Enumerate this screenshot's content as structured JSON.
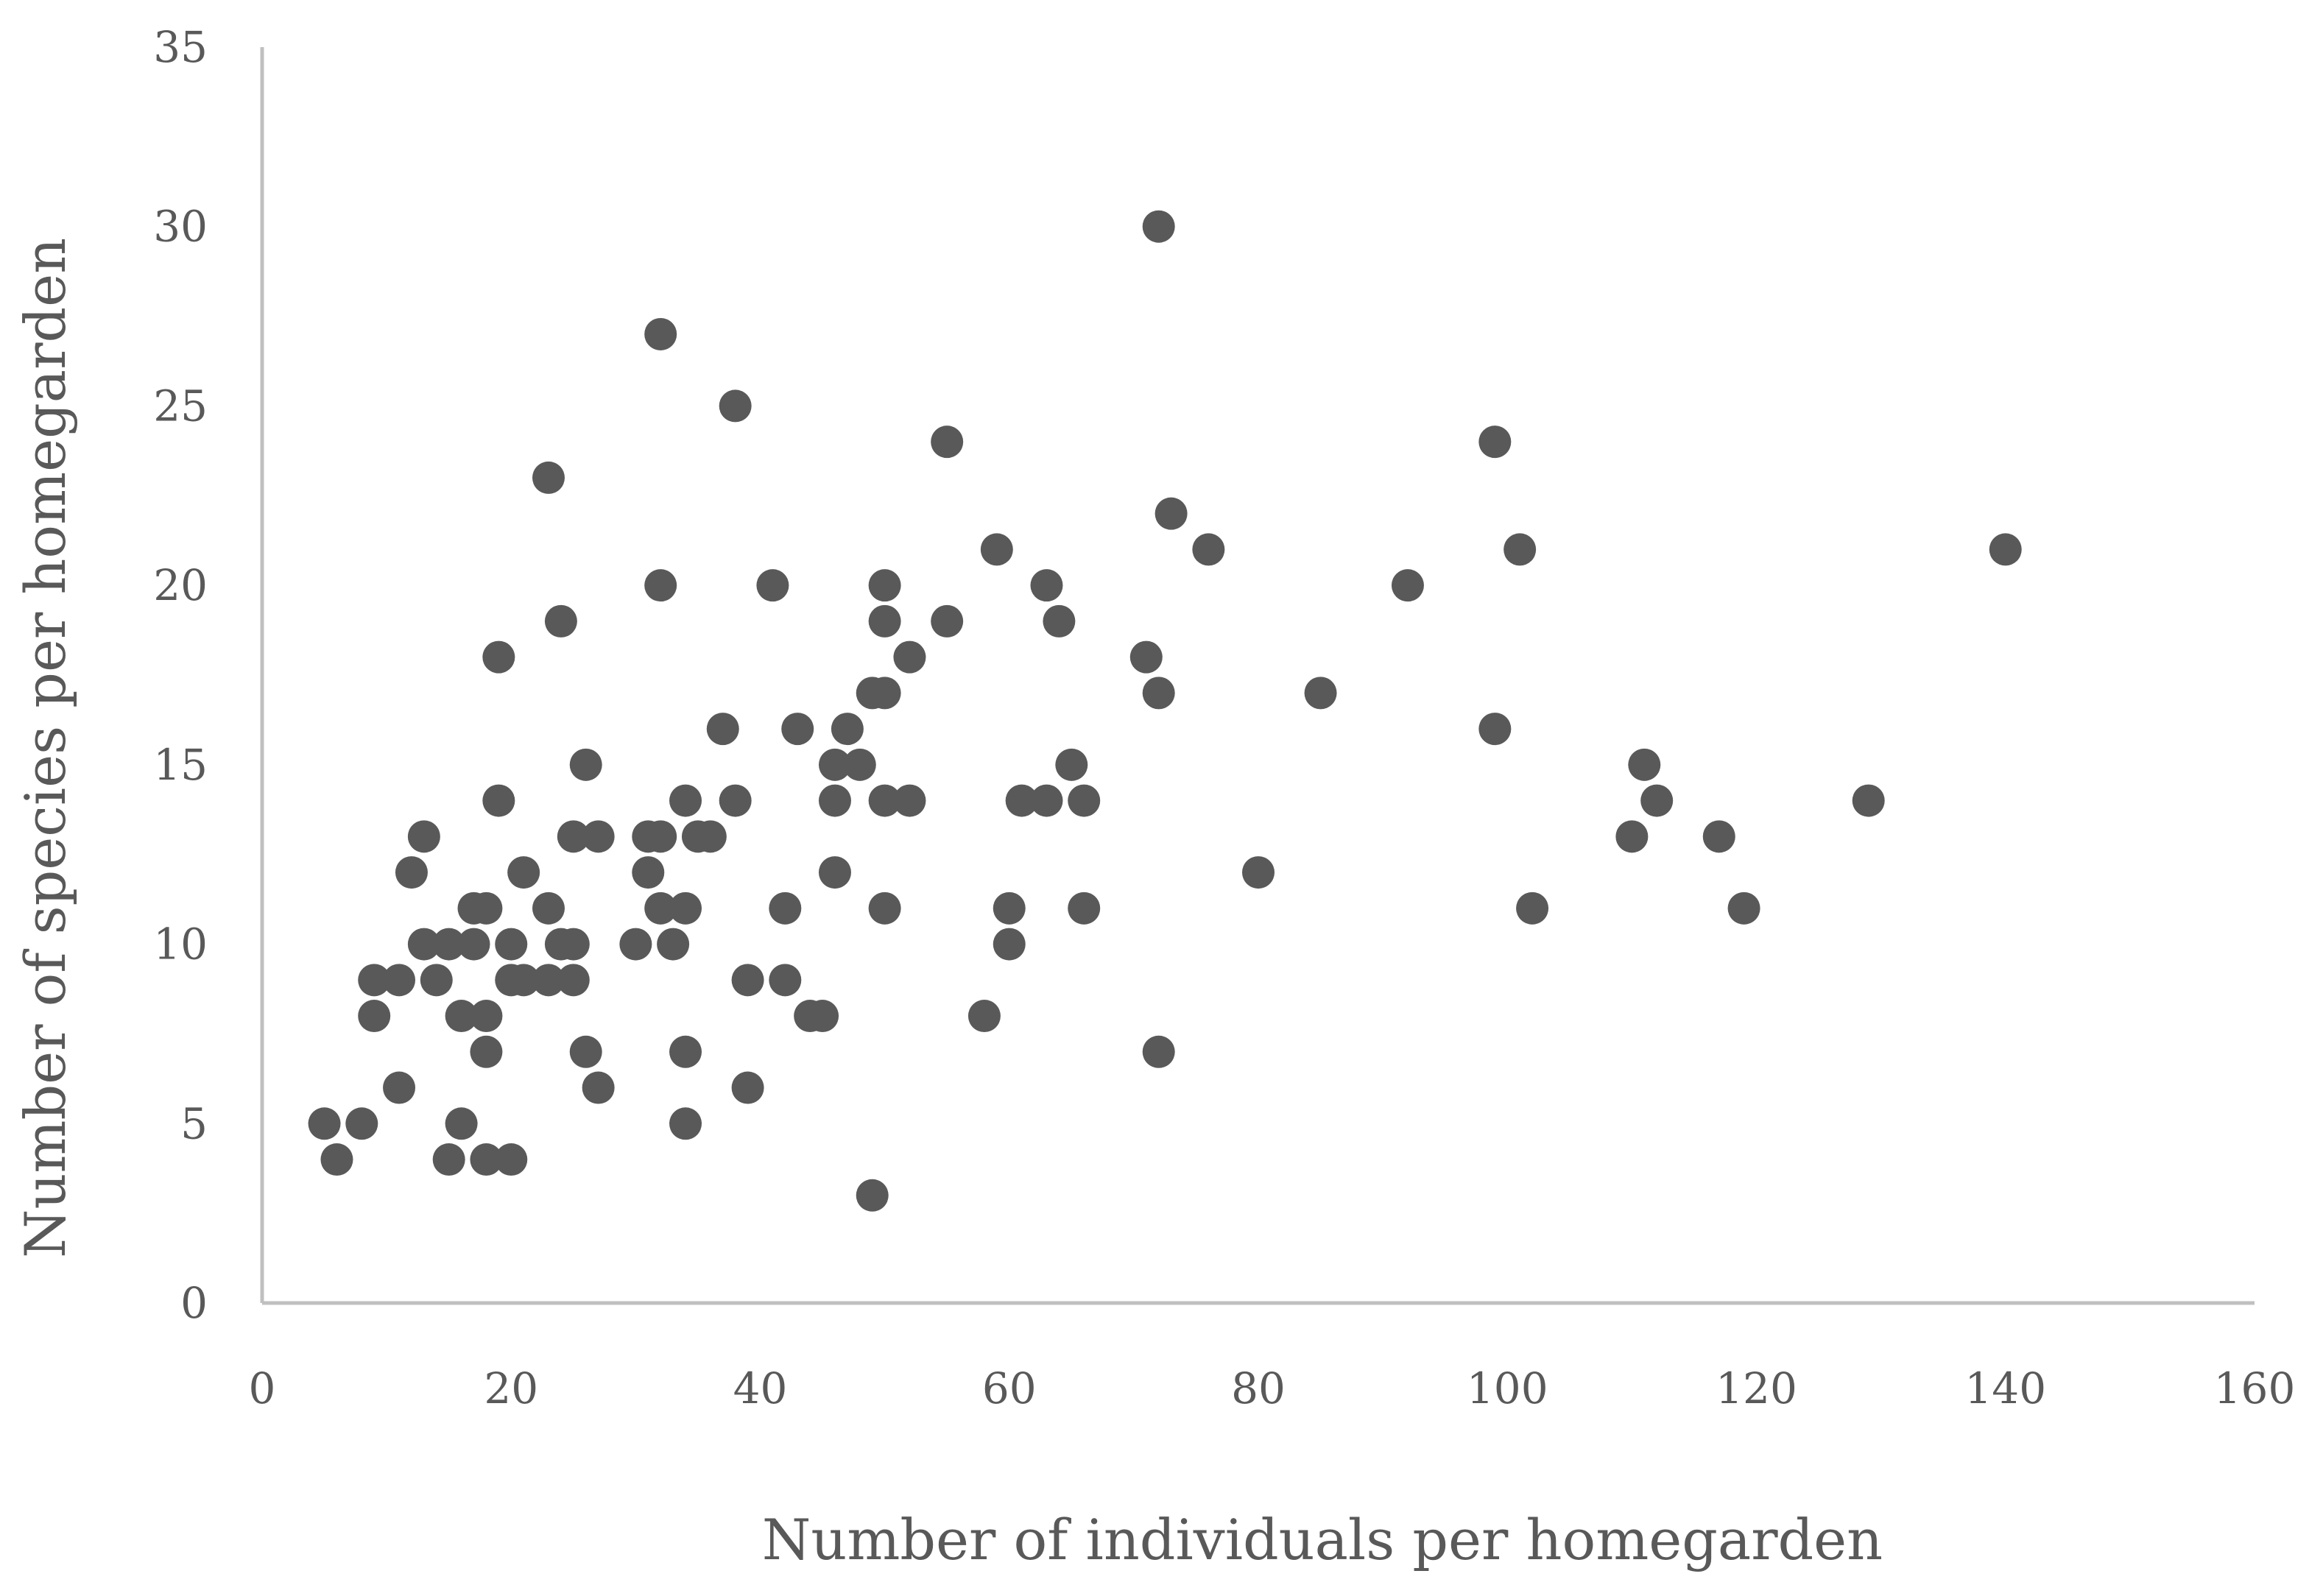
{
  "chart_data": {
    "type": "scatter",
    "title": "",
    "xlabel": "Number of individuals per homegarden",
    "ylabel": "Number of species per homegarden",
    "xlim": [
      0,
      160
    ],
    "ylim": [
      0,
      35
    ],
    "x_ticks": [
      "0",
      "20",
      "40",
      "60",
      "80",
      "100",
      "120",
      "140",
      "160"
    ],
    "y_ticks": [
      "0",
      "5",
      "10",
      "15",
      "20",
      "25",
      "30",
      "35"
    ],
    "grid": false,
    "legend": "none",
    "marker_color": "#595959",
    "axis_color": "#c0c0c0",
    "text_color": "#595959",
    "points": [
      {
        "x": 5,
        "y": 5
      },
      {
        "x": 6,
        "y": 4
      },
      {
        "x": 8,
        "y": 5
      },
      {
        "x": 9,
        "y": 9
      },
      {
        "x": 9,
        "y": 8
      },
      {
        "x": 11,
        "y": 9
      },
      {
        "x": 11,
        "y": 6
      },
      {
        "x": 12,
        "y": 12
      },
      {
        "x": 13,
        "y": 13
      },
      {
        "x": 13,
        "y": 10
      },
      {
        "x": 14,
        "y": 9
      },
      {
        "x": 15,
        "y": 10
      },
      {
        "x": 15,
        "y": 4
      },
      {
        "x": 16,
        "y": 8
      },
      {
        "x": 16,
        "y": 5
      },
      {
        "x": 17,
        "y": 11
      },
      {
        "x": 17,
        "y": 10
      },
      {
        "x": 18,
        "y": 11
      },
      {
        "x": 18,
        "y": 8
      },
      {
        "x": 18,
        "y": 7
      },
      {
        "x": 18,
        "y": 4
      },
      {
        "x": 19,
        "y": 18
      },
      {
        "x": 19,
        "y": 14
      },
      {
        "x": 20,
        "y": 10
      },
      {
        "x": 20,
        "y": 9
      },
      {
        "x": 20,
        "y": 4
      },
      {
        "x": 21,
        "y": 12
      },
      {
        "x": 21,
        "y": 9
      },
      {
        "x": 23,
        "y": 23
      },
      {
        "x": 23,
        "y": 11
      },
      {
        "x": 23,
        "y": 9
      },
      {
        "x": 24,
        "y": 19
      },
      {
        "x": 24,
        "y": 10
      },
      {
        "x": 25,
        "y": 13
      },
      {
        "x": 25,
        "y": 10
      },
      {
        "x": 25,
        "y": 9
      },
      {
        "x": 26,
        "y": 15
      },
      {
        "x": 26,
        "y": 7
      },
      {
        "x": 27,
        "y": 13
      },
      {
        "x": 27,
        "y": 6
      },
      {
        "x": 30,
        "y": 10
      },
      {
        "x": 31,
        "y": 13
      },
      {
        "x": 31,
        "y": 12
      },
      {
        "x": 32,
        "y": 27
      },
      {
        "x": 32,
        "y": 20
      },
      {
        "x": 32,
        "y": 13
      },
      {
        "x": 32,
        "y": 11
      },
      {
        "x": 33,
        "y": 10
      },
      {
        "x": 34,
        "y": 14
      },
      {
        "x": 34,
        "y": 11
      },
      {
        "x": 34,
        "y": 7
      },
      {
        "x": 34,
        "y": 5
      },
      {
        "x": 35,
        "y": 13
      },
      {
        "x": 36,
        "y": 13
      },
      {
        "x": 37,
        "y": 16
      },
      {
        "x": 38,
        "y": 25
      },
      {
        "x": 38,
        "y": 14
      },
      {
        "x": 39,
        "y": 9
      },
      {
        "x": 39,
        "y": 6
      },
      {
        "x": 41,
        "y": 20
      },
      {
        "x": 42,
        "y": 11
      },
      {
        "x": 42,
        "y": 9
      },
      {
        "x": 43,
        "y": 16
      },
      {
        "x": 44,
        "y": 8
      },
      {
        "x": 45,
        "y": 8
      },
      {
        "x": 46,
        "y": 15
      },
      {
        "x": 46,
        "y": 14
      },
      {
        "x": 46,
        "y": 12
      },
      {
        "x": 47,
        "y": 16
      },
      {
        "x": 48,
        "y": 15
      },
      {
        "x": 49,
        "y": 17
      },
      {
        "x": 49,
        "y": 3
      },
      {
        "x": 50,
        "y": 20
      },
      {
        "x": 50,
        "y": 19
      },
      {
        "x": 50,
        "y": 17
      },
      {
        "x": 50,
        "y": 14
      },
      {
        "x": 50,
        "y": 11
      },
      {
        "x": 52,
        "y": 18
      },
      {
        "x": 52,
        "y": 14
      },
      {
        "x": 55,
        "y": 24
      },
      {
        "x": 55,
        "y": 19
      },
      {
        "x": 58,
        "y": 8
      },
      {
        "x": 59,
        "y": 21
      },
      {
        "x": 60,
        "y": 11
      },
      {
        "x": 60,
        "y": 10
      },
      {
        "x": 61,
        "y": 14
      },
      {
        "x": 63,
        "y": 20
      },
      {
        "x": 63,
        "y": 14
      },
      {
        "x": 64,
        "y": 19
      },
      {
        "x": 65,
        "y": 15
      },
      {
        "x": 66,
        "y": 14
      },
      {
        "x": 66,
        "y": 11
      },
      {
        "x": 71,
        "y": 18
      },
      {
        "x": 72,
        "y": 30
      },
      {
        "x": 72,
        "y": 17
      },
      {
        "x": 72,
        "y": 7
      },
      {
        "x": 73,
        "y": 22
      },
      {
        "x": 76,
        "y": 21
      },
      {
        "x": 80,
        "y": 12
      },
      {
        "x": 85,
        "y": 17
      },
      {
        "x": 92,
        "y": 20
      },
      {
        "x": 99,
        "y": 24
      },
      {
        "x": 99,
        "y": 16
      },
      {
        "x": 101,
        "y": 21
      },
      {
        "x": 102,
        "y": 11
      },
      {
        "x": 110,
        "y": 13
      },
      {
        "x": 111,
        "y": 15
      },
      {
        "x": 112,
        "y": 14
      },
      {
        "x": 117,
        "y": 13
      },
      {
        "x": 119,
        "y": 11
      },
      {
        "x": 129,
        "y": 14
      },
      {
        "x": 140,
        "y": 21
      }
    ]
  }
}
